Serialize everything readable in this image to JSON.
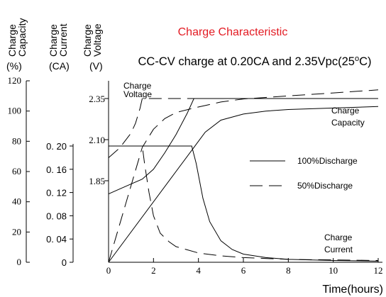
{
  "chart_data": {
    "type": "line",
    "title": "Charge Characteristic",
    "subtitle": "CC-CV charge at 0.20CA and 2.35Vpc(25°C)",
    "title_color": "#e31b23",
    "xlabel": "Time(hours)",
    "xlim": [
      0,
      12
    ],
    "x_ticks": [
      "0",
      "2",
      "4",
      "6",
      "8",
      "10",
      "12"
    ],
    "axes": {
      "capacity": {
        "title_lines": [
          "Charge",
          "Capacity"
        ],
        "unit": "(%)",
        "ylim": [
          0,
          120
        ],
        "ticks": [
          "0",
          "20",
          "40",
          "60",
          "80",
          "100",
          "120"
        ]
      },
      "current": {
        "title_lines": [
          "Charge",
          "Current"
        ],
        "unit": "(CA)",
        "ylim": [
          0,
          0.2
        ],
        "ticks": [
          "0",
          "0. 04",
          "0. 08",
          "0. 12",
          "0. 16",
          "0. 20"
        ]
      },
      "voltage": {
        "title_lines": [
          "Charge",
          "Voltage"
        ],
        "unit": "(V)",
        "ticks": [
          "1.85",
          "2.10",
          "2.35"
        ],
        "tick_values": [
          1.85,
          2.1,
          2.35
        ]
      }
    },
    "legend": {
      "placement": "right-middle",
      "items": [
        {
          "label": "100%Discharge",
          "dash": "solid"
        },
        {
          "label": "50%Discharge",
          "dash": "dashed"
        }
      ]
    },
    "annotations": {
      "voltage": [
        "Charge",
        "Voltage"
      ],
      "capacity": [
        "Charge",
        "Capacity"
      ],
      "current": [
        "Charge",
        "Current"
      ]
    },
    "series": [
      {
        "discharge": "100%",
        "quantity": "voltage",
        "dash": "solid",
        "x": [
          0,
          0.5,
          1,
          1.5,
          2,
          2.5,
          3,
          3.5,
          3.8,
          6,
          8,
          10,
          12
        ],
        "y": [
          1.77,
          1.8,
          1.83,
          1.86,
          1.92,
          2.02,
          2.13,
          2.26,
          2.35,
          2.35,
          2.35,
          2.35,
          2.35
        ]
      },
      {
        "discharge": "50%",
        "quantity": "voltage",
        "dash": "dashed",
        "x": [
          0,
          0.5,
          1,
          1.2,
          1.4,
          1.5,
          6,
          8,
          10,
          12
        ],
        "y": [
          1.99,
          2.05,
          2.14,
          2.2,
          2.29,
          2.35,
          2.35,
          2.35,
          2.35,
          2.35
        ]
      },
      {
        "discharge": "100%",
        "quantity": "current",
        "dash": "solid",
        "x": [
          0,
          3.7,
          3.9,
          4.2,
          4.5,
          5,
          5.5,
          6,
          7,
          8,
          10,
          12
        ],
        "y": [
          0.2,
          0.2,
          0.17,
          0.11,
          0.07,
          0.037,
          0.022,
          0.014,
          0.008,
          0.005,
          0.003,
          0.002
        ]
      },
      {
        "discharge": "50%",
        "quantity": "current",
        "dash": "dashed",
        "x": [
          0,
          1.5,
          1.6,
          1.8,
          2,
          2.3,
          2.7,
          3,
          4,
          5,
          6,
          8,
          10,
          12
        ],
        "y": [
          0.2,
          0.2,
          0.17,
          0.12,
          0.08,
          0.05,
          0.035,
          0.027,
          0.016,
          0.011,
          0.008,
          0.005,
          0.004,
          0.003
        ]
      },
      {
        "discharge": "100%",
        "quantity": "capacity",
        "dash": "solid",
        "x": [
          0,
          3.8,
          4.3,
          5,
          6,
          7,
          8,
          10,
          12
        ],
        "y": [
          0,
          76,
          86,
          94,
          98,
          100,
          101,
          102,
          103
        ]
      },
      {
        "discharge": "50%",
        "quantity": "capacity",
        "dash": "dashed",
        "x": [
          0,
          1.5,
          2,
          2.5,
          3,
          3.8,
          5,
          6,
          8,
          10,
          12
        ],
        "y": [
          0,
          76,
          88,
          95,
          99,
          102,
          106,
          108,
          110,
          112,
          114
        ]
      }
    ]
  }
}
